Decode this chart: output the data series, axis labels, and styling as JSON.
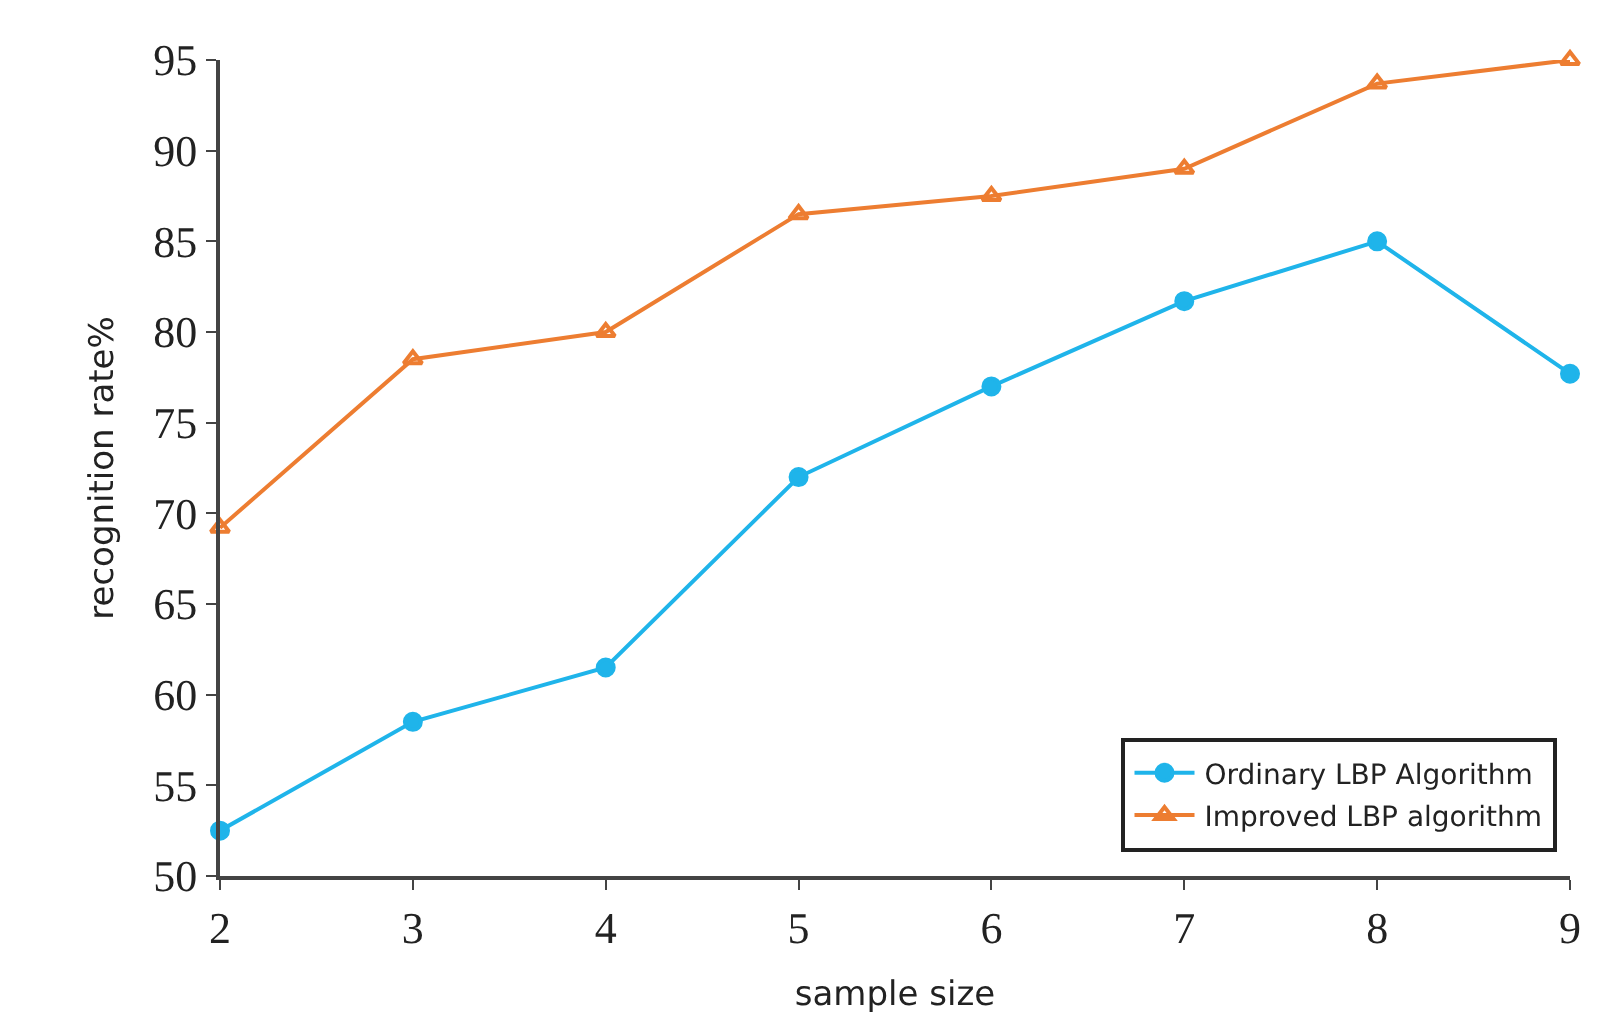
{
  "chart_data": {
    "type": "line",
    "xlabel": "sample size",
    "ylabel": "recognition rate%",
    "x": [
      2,
      3,
      4,
      5,
      6,
      7,
      8,
      9
    ],
    "xlim": [
      2,
      9
    ],
    "xticks": [
      2,
      3,
      4,
      5,
      6,
      7,
      8,
      9
    ],
    "ylim": [
      50,
      95
    ],
    "yticks": [
      50,
      55,
      60,
      65,
      70,
      75,
      80,
      85,
      90,
      95
    ],
    "legend": "bottom right",
    "line_style": "solid",
    "series": [
      {
        "name": "Ordinary LBP Algorithm",
        "color": "#1fb4ea",
        "marker": "circle",
        "values": [
          52.5,
          58.5,
          61.5,
          72,
          77,
          81.7,
          85,
          77.7
        ]
      },
      {
        "name": "Improved LBP algorithm",
        "color": "#ed7d31",
        "marker": "triangle",
        "values": [
          69.2,
          78.5,
          80,
          86.5,
          87.5,
          89,
          93.7,
          95
        ]
      }
    ]
  }
}
